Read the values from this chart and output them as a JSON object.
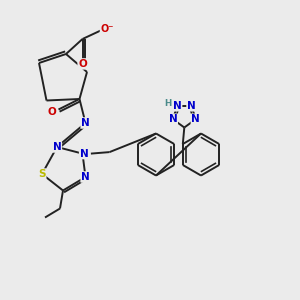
{
  "bg_color": "#ebebeb",
  "bond_color": "#222222",
  "bond_width": 1.4,
  "atom_colors": {
    "N": "#0000cc",
    "O": "#cc0000",
    "S": "#bbbb00",
    "H": "#4a8a8a",
    "C": "#222222"
  },
  "font_size": 7.5
}
